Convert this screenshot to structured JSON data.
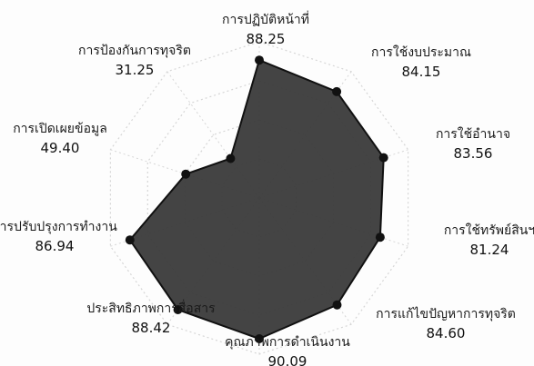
{
  "chart_data": {
    "type": "radar",
    "title": "",
    "categories": [
      "การปฏิบัติหน้าที่",
      "การใช้งบประมาณ",
      "การใช้อำนาจ",
      "การใช้ทรัพย์สินฯ",
      "การแก้ไขปัญหาการทุจริต",
      "คุณภาพการดำเนินงาน",
      "ประสิทธิภาพการสื่อสาร",
      "การปรับปรุงการทำงาน",
      "การเปิดเผยข้อมูล",
      "การป้องกันการทุจริต"
    ],
    "value_labels": [
      "88.25",
      "84.15",
      "83.56",
      "81.24",
      "84.60",
      "90.09",
      "88.42",
      "86.94",
      "49.40",
      "31.25"
    ],
    "series": [
      {
        "values": [
          88.25,
          84.15,
          83.56,
          81.24,
          84.6,
          90.09,
          88.42,
          86.94,
          49.4,
          31.25
        ]
      }
    ],
    "range": [
      0,
      100
    ],
    "grid": true,
    "colors": {
      "fill": "#3a3a3a",
      "stroke": "#111111",
      "marker": "#111111",
      "grid": "#d6d6d6",
      "text": "#1a1a1a"
    }
  }
}
